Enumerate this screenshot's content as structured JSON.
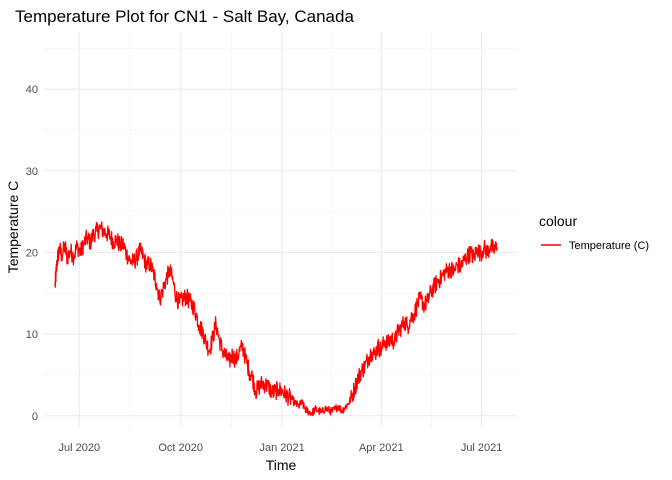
{
  "chart_data": {
    "type": "line",
    "title": "Temperature Plot for CN1 - Salt Bay, Canada",
    "xlabel": "Time",
    "ylabel": "Temperature C",
    "x_tick_labels": [
      "Jul 2020",
      "Oct 2020",
      "Jan 2021",
      "Apr 2021",
      "Jul 2021"
    ],
    "x_tick_dates": [
      "2020-07-01",
      "2020-10-01",
      "2021-01-01",
      "2021-04-01",
      "2021-07-01"
    ],
    "y_ticks": [
      0,
      10,
      20,
      30,
      40
    ],
    "xlim": [
      "2020-05-30",
      "2021-08-03"
    ],
    "ylim": [
      -1.5,
      47
    ],
    "grid": true,
    "legend_title": "colour",
    "legend_position": "right",
    "series": [
      {
        "name": "Temperature (C)",
        "color": "#ff0000",
        "points": [
          [
            "2020-06-09",
            15.8
          ],
          [
            "2020-06-10",
            17.5
          ],
          [
            "2020-06-11",
            19.0
          ],
          [
            "2020-06-13",
            20.5
          ],
          [
            "2020-06-15",
            19.6
          ],
          [
            "2020-06-18",
            20.8
          ],
          [
            "2020-06-20",
            19.3
          ],
          [
            "2020-06-23",
            20.2
          ],
          [
            "2020-06-26",
            19.5
          ],
          [
            "2020-06-29",
            20.8
          ],
          [
            "2020-07-02",
            20.0
          ],
          [
            "2020-07-05",
            21.0
          ],
          [
            "2020-07-08",
            21.8
          ],
          [
            "2020-07-11",
            21.2
          ],
          [
            "2020-07-14",
            22.3
          ],
          [
            "2020-07-17",
            22.6
          ],
          [
            "2020-07-20",
            23.0
          ],
          [
            "2020-07-23",
            22.6
          ],
          [
            "2020-07-26",
            22.3
          ],
          [
            "2020-07-29",
            22.0
          ],
          [
            "2020-08-01",
            21.3
          ],
          [
            "2020-08-04",
            21.6
          ],
          [
            "2020-08-07",
            20.8
          ],
          [
            "2020-08-10",
            21.0
          ],
          [
            "2020-08-13",
            19.8
          ],
          [
            "2020-08-16",
            19.0
          ],
          [
            "2020-08-19",
            18.8
          ],
          [
            "2020-08-22",
            19.3
          ],
          [
            "2020-08-25",
            20.2
          ],
          [
            "2020-08-28",
            19.5
          ],
          [
            "2020-08-31",
            18.4
          ],
          [
            "2020-09-03",
            18.6
          ],
          [
            "2020-09-06",
            17.6
          ],
          [
            "2020-09-09",
            16.2
          ],
          [
            "2020-09-12",
            14.3
          ],
          [
            "2020-09-15",
            15.5
          ],
          [
            "2020-09-18",
            16.8
          ],
          [
            "2020-09-21",
            17.8
          ],
          [
            "2020-09-24",
            16.5
          ],
          [
            "2020-09-27",
            14.5
          ],
          [
            "2020-09-30",
            13.8
          ],
          [
            "2020-10-03",
            14.3
          ],
          [
            "2020-10-06",
            14.6
          ],
          [
            "2020-10-09",
            14.0
          ],
          [
            "2020-10-12",
            13.5
          ],
          [
            "2020-10-15",
            12.5
          ],
          [
            "2020-10-18",
            11.0
          ],
          [
            "2020-10-21",
            10.3
          ],
          [
            "2020-10-24",
            9.0
          ],
          [
            "2020-10-27",
            8.0
          ],
          [
            "2020-10-30",
            9.5
          ],
          [
            "2020-11-02",
            11.3
          ],
          [
            "2020-11-05",
            9.3
          ],
          [
            "2020-11-08",
            8.0
          ],
          [
            "2020-11-11",
            7.2
          ],
          [
            "2020-11-14",
            6.6
          ],
          [
            "2020-11-17",
            7.5
          ],
          [
            "2020-11-20",
            6.8
          ],
          [
            "2020-11-23",
            7.8
          ],
          [
            "2020-11-26",
            8.5
          ],
          [
            "2020-11-29",
            7.0
          ],
          [
            "2020-12-02",
            5.5
          ],
          [
            "2020-12-05",
            4.8
          ],
          [
            "2020-12-08",
            3.0
          ],
          [
            "2020-12-11",
            3.5
          ],
          [
            "2020-12-14",
            4.0
          ],
          [
            "2020-12-17",
            3.8
          ],
          [
            "2020-12-20",
            3.5
          ],
          [
            "2020-12-23",
            2.8
          ],
          [
            "2020-12-26",
            3.0
          ],
          [
            "2020-12-29",
            3.2
          ],
          [
            "2021-01-01",
            3.0
          ],
          [
            "2021-01-04",
            2.6
          ],
          [
            "2021-01-07",
            2.3
          ],
          [
            "2021-01-10",
            2.0
          ],
          [
            "2021-01-13",
            1.5
          ],
          [
            "2021-01-16",
            1.2
          ],
          [
            "2021-01-19",
            1.6
          ],
          [
            "2021-01-22",
            0.8
          ],
          [
            "2021-01-25",
            0.5
          ],
          [
            "2021-01-28",
            0.3
          ],
          [
            "2021-01-31",
            0.8
          ],
          [
            "2021-02-03",
            0.6
          ],
          [
            "2021-02-06",
            0.4
          ],
          [
            "2021-02-09",
            0.9
          ],
          [
            "2021-02-12",
            0.7
          ],
          [
            "2021-02-15",
            0.5
          ],
          [
            "2021-02-18",
            0.8
          ],
          [
            "2021-02-21",
            1.2
          ],
          [
            "2021-02-24",
            0.6
          ],
          [
            "2021-02-27",
            1.0
          ],
          [
            "2021-03-02",
            1.5
          ],
          [
            "2021-03-05",
            2.2
          ],
          [
            "2021-03-08",
            3.5
          ],
          [
            "2021-03-11",
            4.6
          ],
          [
            "2021-03-14",
            5.5
          ],
          [
            "2021-03-17",
            6.0
          ],
          [
            "2021-03-20",
            7.0
          ],
          [
            "2021-03-23",
            7.8
          ],
          [
            "2021-03-26",
            7.5
          ],
          [
            "2021-03-29",
            8.5
          ],
          [
            "2021-04-01",
            8.0
          ],
          [
            "2021-04-04",
            9.2
          ],
          [
            "2021-04-07",
            8.8
          ],
          [
            "2021-04-10",
            9.5
          ],
          [
            "2021-04-13",
            9.0
          ],
          [
            "2021-04-16",
            10.3
          ],
          [
            "2021-04-19",
            10.8
          ],
          [
            "2021-04-22",
            11.5
          ],
          [
            "2021-04-25",
            11.0
          ],
          [
            "2021-04-28",
            12.0
          ],
          [
            "2021-05-01",
            12.5
          ],
          [
            "2021-05-04",
            13.8
          ],
          [
            "2021-05-07",
            14.3
          ],
          [
            "2021-05-10",
            13.5
          ],
          [
            "2021-05-13",
            14.0
          ],
          [
            "2021-05-16",
            15.2
          ],
          [
            "2021-05-19",
            15.8
          ],
          [
            "2021-05-22",
            16.5
          ],
          [
            "2021-05-25",
            16.8
          ],
          [
            "2021-05-28",
            17.5
          ],
          [
            "2021-05-31",
            17.8
          ],
          [
            "2021-06-03",
            18.0
          ],
          [
            "2021-06-06",
            17.6
          ],
          [
            "2021-06-09",
            18.5
          ],
          [
            "2021-06-12",
            18.2
          ],
          [
            "2021-06-15",
            19.0
          ],
          [
            "2021-06-18",
            19.5
          ],
          [
            "2021-06-21",
            20.0
          ],
          [
            "2021-06-24",
            19.3
          ],
          [
            "2021-06-27",
            20.5
          ],
          [
            "2021-06-30",
            19.8
          ],
          [
            "2021-07-03",
            20.6
          ],
          [
            "2021-07-06",
            20.0
          ],
          [
            "2021-07-09",
            20.8
          ],
          [
            "2021-07-12",
            20.3
          ],
          [
            "2021-07-15",
            20.6
          ]
        ]
      }
    ]
  }
}
